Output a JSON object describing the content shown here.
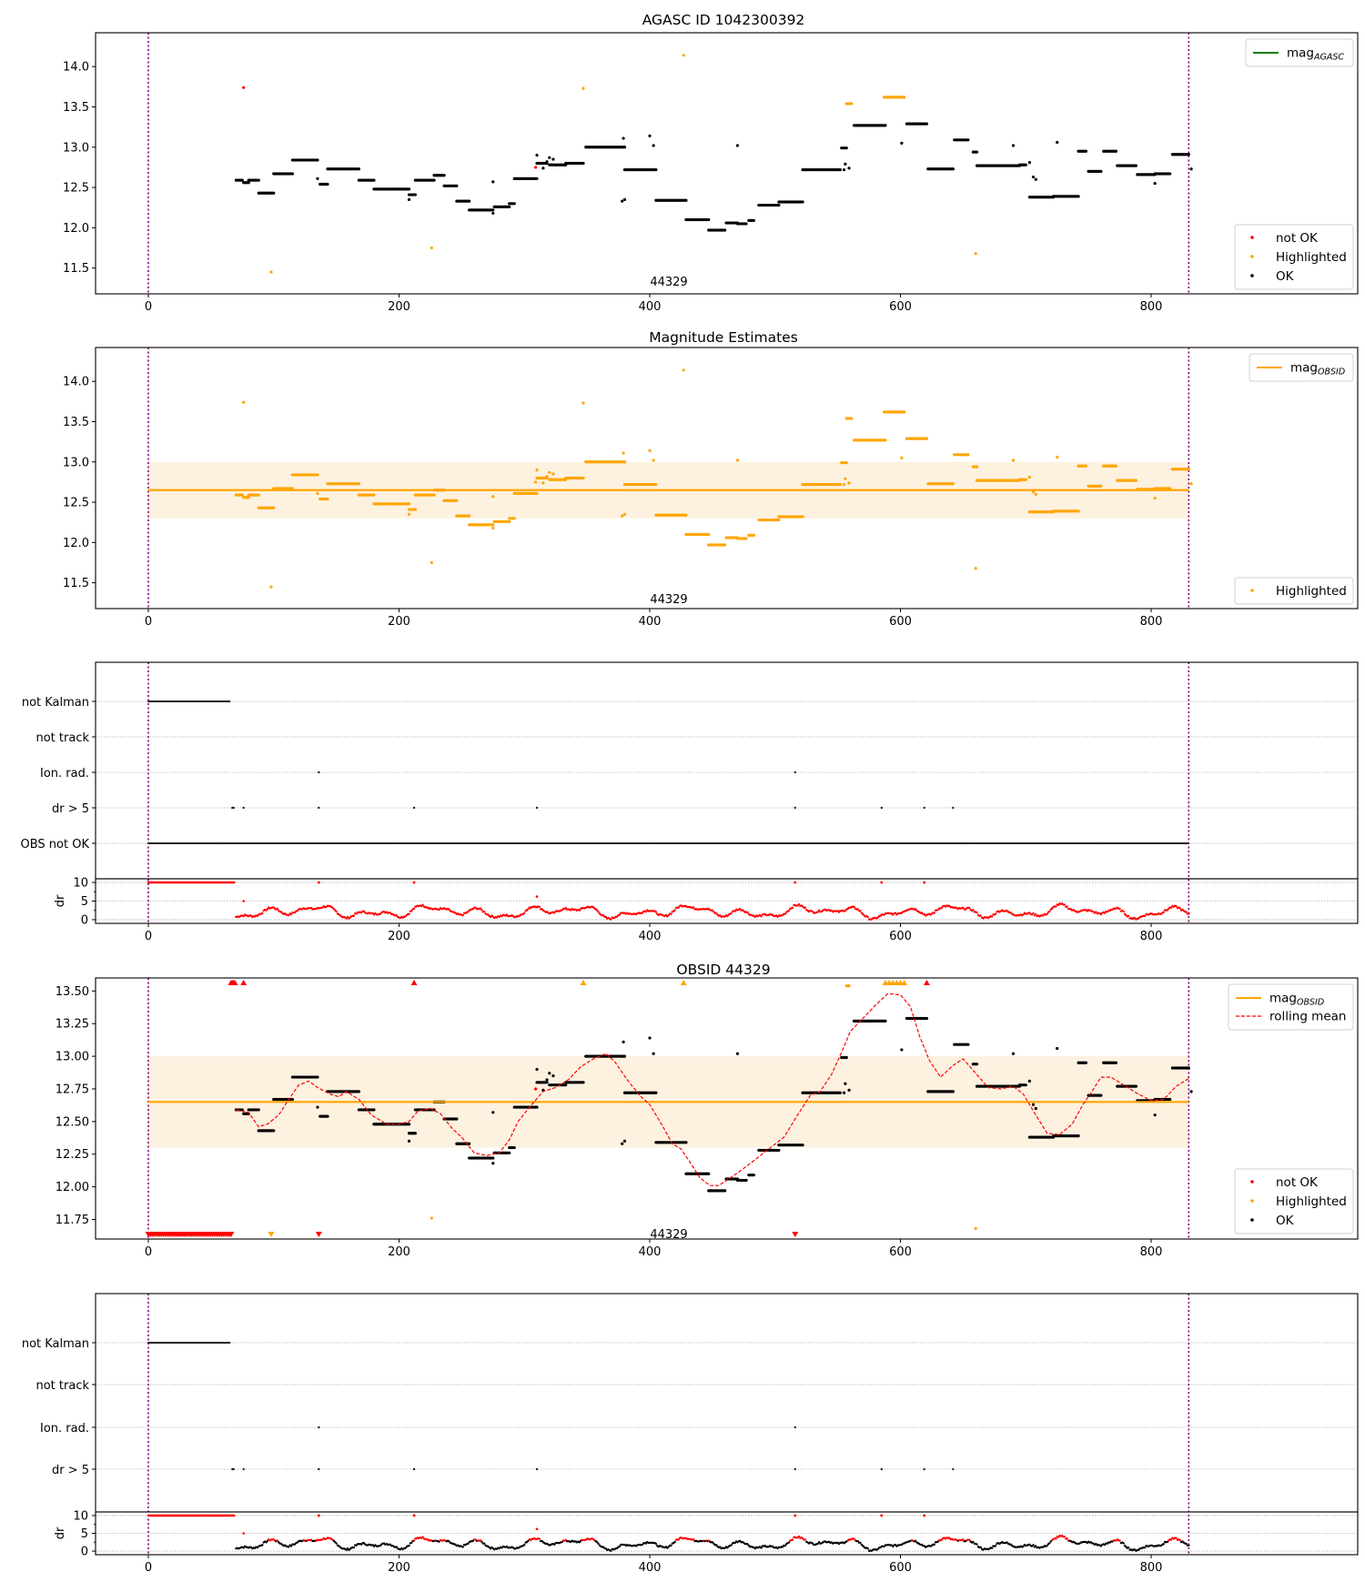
{
  "figure": {
    "x_ticks": [
      0,
      200,
      400,
      600,
      800
    ],
    "xlim": [
      -40,
      965
    ],
    "vline_x": [
      0,
      830
    ],
    "colors": {
      "ok": "#000000",
      "not_ok": "#ff0000",
      "highlighted": "#ffa500",
      "mag_agasc": "#008000",
      "mag_obsid": "#ffa500",
      "band": "#fdf1e0",
      "vline": "#800080",
      "rolling": "#ff0000",
      "grid": "#b0b0b0"
    }
  },
  "chart_data": [
    {
      "id": "panel1",
      "type": "scatter",
      "title": "AGASC ID 1042300392",
      "ylim": [
        11.18,
        14.42
      ],
      "y_ticks": [
        "11.5",
        "12.0",
        "12.5",
        "13.0",
        "13.5",
        "14.0"
      ],
      "annotation": "44329",
      "legend_top": [
        {
          "label": "mag",
          "sub": "AGASC",
          "kind": "line",
          "color": "#008000"
        }
      ],
      "legend_bottom": [
        {
          "label": "not OK",
          "color": "#ff0000"
        },
        {
          "label": "Highlighted",
          "color": "#ffa500"
        },
        {
          "label": "OK",
          "color": "#000000"
        }
      ]
    },
    {
      "id": "panel2",
      "type": "scatter",
      "title": "Magnitude Estimates",
      "ylim": [
        11.18,
        14.42
      ],
      "y_ticks": [
        "11.5",
        "12.0",
        "12.5",
        "13.0",
        "13.5",
        "14.0"
      ],
      "annotation": "44329",
      "mag_obsid": 12.65,
      "band": [
        12.3,
        13.0
      ],
      "legend_top": [
        {
          "label": "mag",
          "sub": "OBSID",
          "kind": "line",
          "color": "#ffa500"
        }
      ],
      "legend_bottom": [
        {
          "label": "Highlighted",
          "color": "#ffa500"
        }
      ]
    },
    {
      "id": "panel3",
      "type": "scatter",
      "title": "",
      "flag_labels": [
        "not Kalman",
        "not track",
        "Ion. rad.",
        "dr > 5",
        "OBS not OK"
      ],
      "dr_ylabel": "dr",
      "dr_ticks": [
        "0",
        "5",
        "10"
      ],
      "dr_ylim": [
        -0.5,
        10.5
      ]
    },
    {
      "id": "panel4",
      "type": "scatter",
      "title": "OBSID 44329",
      "ylim": [
        11.6,
        13.6
      ],
      "y_ticks": [
        "11.75",
        "12.00",
        "12.25",
        "12.50",
        "12.75",
        "13.00",
        "13.25",
        "13.50"
      ],
      "annotation": "44329",
      "mag_obsid": 12.65,
      "band": [
        12.3,
        13.0
      ],
      "legend_top": [
        {
          "label": "mag",
          "sub": "OBSID",
          "kind": "line",
          "color": "#ffa500"
        },
        {
          "label": "rolling mean",
          "sub": "",
          "kind": "dash",
          "color": "#ff0000"
        }
      ],
      "legend_bottom": [
        {
          "label": "not OK",
          "color": "#ff0000"
        },
        {
          "label": "Highlighted",
          "color": "#ffa500"
        },
        {
          "label": "OK",
          "color": "#000000"
        }
      ]
    },
    {
      "id": "panel5",
      "type": "scatter",
      "title": "",
      "flag_labels": [
        "not Kalman",
        "not track",
        "Ion. rad.",
        "dr > 5"
      ],
      "dr_ylabel": "dr",
      "dr_ticks": [
        "0",
        "5",
        "10"
      ],
      "dr_ylim": [
        -0.5,
        10.5
      ]
    }
  ],
  "series": {
    "mag_segments": [
      [
        70,
        75,
        12.59
      ],
      [
        76,
        80,
        12.56
      ],
      [
        80,
        88,
        12.59
      ],
      [
        88,
        100,
        12.43
      ],
      [
        100,
        115,
        12.67
      ],
      [
        115,
        135,
        12.84
      ],
      [
        137,
        143,
        12.54
      ],
      [
        143,
        168,
        12.73
      ],
      [
        168,
        180,
        12.59
      ],
      [
        180,
        208,
        12.48
      ],
      [
        208,
        213,
        12.41
      ],
      [
        213,
        228,
        12.59
      ],
      [
        228,
        236,
        12.65
      ],
      [
        236,
        246,
        12.52
      ],
      [
        246,
        256,
        12.33
      ],
      [
        256,
        275,
        12.22
      ],
      [
        276,
        288,
        12.26
      ],
      [
        288,
        292,
        12.3
      ],
      [
        292,
        310,
        12.61
      ],
      [
        310,
        318,
        12.8
      ],
      [
        320,
        333,
        12.78
      ],
      [
        333,
        347,
        12.8
      ],
      [
        349,
        380,
        13.0
      ],
      [
        380,
        405,
        12.72
      ],
      [
        405,
        429,
        12.34
      ],
      [
        429,
        447,
        12.1
      ],
      [
        447,
        460,
        11.97
      ],
      [
        461,
        470,
        12.06
      ],
      [
        470,
        477,
        12.05
      ],
      [
        479,
        483,
        12.09
      ],
      [
        487,
        503,
        12.28
      ],
      [
        503,
        522,
        12.32
      ],
      [
        522,
        552,
        12.72
      ],
      [
        553,
        557,
        12.99
      ],
      [
        563,
        588,
        13.27
      ],
      [
        605,
        621,
        13.29
      ],
      [
        622,
        642,
        12.73
      ],
      [
        643,
        649,
        13.09
      ],
      [
        650,
        654,
        13.09
      ],
      [
        658,
        661,
        12.94
      ],
      [
        661,
        695,
        12.77
      ],
      [
        695,
        700,
        12.78
      ],
      [
        703,
        722,
        12.38
      ],
      [
        722,
        742,
        12.39
      ],
      [
        742,
        748,
        12.95
      ],
      [
        750,
        760,
        12.7
      ],
      [
        762,
        772,
        12.95
      ],
      [
        773,
        788,
        12.77
      ],
      [
        789,
        803,
        12.66
      ],
      [
        803,
        815,
        12.67
      ],
      [
        817,
        830,
        12.91
      ]
    ],
    "mag_highlight_segments": [
      [
        557,
        561,
        13.54
      ],
      [
        587,
        603,
        13.62
      ]
    ],
    "mag_ok_points": [
      [
        135,
        12.61
      ],
      [
        208,
        12.35
      ],
      [
        275,
        12.18
      ],
      [
        275,
        12.57
      ],
      [
        310,
        12.9
      ],
      [
        315,
        12.74
      ],
      [
        318,
        12.82
      ],
      [
        320,
        12.87
      ],
      [
        323,
        12.85
      ],
      [
        378,
        12.33
      ],
      [
        380,
        12.35
      ],
      [
        379,
        13.11
      ],
      [
        400,
        13.14
      ],
      [
        403,
        13.02
      ],
      [
        470,
        13.02
      ],
      [
        556,
        12.79
      ],
      [
        601,
        13.05
      ],
      [
        690,
        13.02
      ],
      [
        703,
        12.81
      ],
      [
        706,
        12.63
      ],
      [
        708,
        12.6
      ],
      [
        725,
        13.06
      ],
      [
        803,
        12.55
      ],
      [
        832,
        12.73
      ],
      [
        555,
        12.72
      ],
      [
        559,
        12.74
      ]
    ],
    "mag_notok_points": [
      [
        76,
        13.74
      ],
      [
        309,
        12.75
      ]
    ],
    "mag_highlight_points": [
      [
        98,
        11.45
      ],
      [
        226,
        11.75
      ],
      [
        347,
        13.73
      ],
      [
        427,
        14.14
      ],
      [
        660,
        11.68
      ]
    ],
    "rolling_mean": [
      [
        70,
        12.59
      ],
      [
        80,
        12.57
      ],
      [
        88,
        12.46
      ],
      [
        95,
        12.48
      ],
      [
        104,
        12.55
      ],
      [
        112,
        12.67
      ],
      [
        120,
        12.78
      ],
      [
        128,
        12.81
      ],
      [
        135,
        12.76
      ],
      [
        145,
        12.71
      ],
      [
        152,
        12.69
      ],
      [
        158,
        12.73
      ],
      [
        168,
        12.67
      ],
      [
        178,
        12.55
      ],
      [
        190,
        12.48
      ],
      [
        200,
        12.48
      ],
      [
        208,
        12.5
      ],
      [
        215,
        12.58
      ],
      [
        225,
        12.6
      ],
      [
        233,
        12.56
      ],
      [
        242,
        12.45
      ],
      [
        250,
        12.38
      ],
      [
        260,
        12.26
      ],
      [
        270,
        12.24
      ],
      [
        280,
        12.26
      ],
      [
        288,
        12.36
      ],
      [
        295,
        12.5
      ],
      [
        305,
        12.62
      ],
      [
        315,
        12.73
      ],
      [
        325,
        12.76
      ],
      [
        335,
        12.82
      ],
      [
        345,
        12.92
      ],
      [
        355,
        12.98
      ],
      [
        365,
        13.02
      ],
      [
        372,
        12.96
      ],
      [
        382,
        12.82
      ],
      [
        392,
        12.7
      ],
      [
        400,
        12.63
      ],
      [
        410,
        12.47
      ],
      [
        418,
        12.33
      ],
      [
        425,
        12.29
      ],
      [
        432,
        12.19
      ],
      [
        440,
        12.07
      ],
      [
        448,
        12.01
      ],
      [
        455,
        12.01
      ],
      [
        463,
        12.06
      ],
      [
        472,
        12.12
      ],
      [
        483,
        12.2
      ],
      [
        495,
        12.29
      ],
      [
        507,
        12.38
      ],
      [
        518,
        12.55
      ],
      [
        528,
        12.7
      ],
      [
        536,
        12.73
      ],
      [
        545,
        12.86
      ],
      [
        553,
        13.03
      ],
      [
        560,
        13.19
      ],
      [
        570,
        13.29
      ],
      [
        580,
        13.39
      ],
      [
        590,
        13.48
      ],
      [
        600,
        13.47
      ],
      [
        608,
        13.38
      ],
      [
        615,
        13.16
      ],
      [
        623,
        12.97
      ],
      [
        632,
        12.84
      ],
      [
        642,
        12.93
      ],
      [
        650,
        12.98
      ],
      [
        660,
        12.87
      ],
      [
        670,
        12.76
      ],
      [
        680,
        12.75
      ],
      [
        690,
        12.77
      ],
      [
        698,
        12.71
      ],
      [
        708,
        12.55
      ],
      [
        717,
        12.41
      ],
      [
        727,
        12.4
      ],
      [
        737,
        12.48
      ],
      [
        745,
        12.62
      ],
      [
        752,
        12.72
      ],
      [
        760,
        12.84
      ],
      [
        768,
        12.84
      ],
      [
        778,
        12.78
      ],
      [
        788,
        12.72
      ],
      [
        800,
        12.66
      ],
      [
        810,
        12.67
      ],
      [
        820,
        12.77
      ],
      [
        830,
        12.83
      ]
    ],
    "panel4_top_markers": [
      {
        "x": 66,
        "c": "#ff0000"
      },
      {
        "x": 67,
        "c": "#ff0000"
      },
      {
        "x": 68,
        "c": "#ff0000"
      },
      {
        "x": 69,
        "c": "#ff0000"
      },
      {
        "x": 76,
        "c": "#ff0000"
      },
      {
        "x": 212,
        "c": "#ff0000"
      },
      {
        "x": 347,
        "c": "#ffa500"
      },
      {
        "x": 427,
        "c": "#ffa500"
      },
      {
        "x": 588,
        "c": "#ffa500"
      },
      {
        "x": 591,
        "c": "#ffa500"
      },
      {
        "x": 594,
        "c": "#ffa500"
      },
      {
        "x": 597,
        "c": "#ffa500"
      },
      {
        "x": 600,
        "c": "#ffa500"
      },
      {
        "x": 603,
        "c": "#ffa500"
      },
      {
        "x": 621,
        "c": "#ff0000"
      }
    ],
    "panel4_bottom_markers_orange": [
      98
    ],
    "panel4_bottom_markers_red_single": [
      136,
      516
    ],
    "notkalman_range": [
      0,
      66
    ],
    "obs_not_ok_range": [
      0,
      830
    ],
    "ion_rad_x": [
      136,
      516
    ],
    "dr5_x": [
      67,
      68,
      76,
      136,
      212,
      310,
      516,
      585,
      619,
      642
    ],
    "dr_top_red_range": [
      0,
      69
    ],
    "dr_top_red_single": [
      136,
      212,
      516,
      585,
      619
    ],
    "dr_outlier": [
      [
        76,
        5.0
      ],
      [
        310,
        6.2
      ]
    ]
  }
}
